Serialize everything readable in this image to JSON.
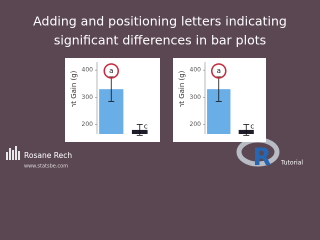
{
  "header": {
    "title_lines": [
      "Adding and positioning letters indicating",
      "significant differences in bar plots"
    ]
  },
  "chart_data": [
    {
      "type": "bar",
      "ylabel": "Weight Gain (g)",
      "categories": [
        null,
        null
      ],
      "values": [
        330,
        180
      ],
      "errors": [
        45,
        20
      ],
      "letters": [
        "a",
        "c"
      ],
      "colors": [
        "#6aaee8",
        "#1c1c2a"
      ],
      "ylim": [
        165,
        430
      ],
      "yticks": [
        200,
        300,
        400
      ]
    },
    {
      "type": "bar",
      "ylabel": "Weight Gain (g)",
      "categories": [
        null,
        null
      ],
      "values": [
        330,
        180
      ],
      "errors": [
        45,
        20
      ],
      "letters": [
        "a",
        "c"
      ],
      "colors": [
        "#6aaee8",
        "#1c1c2a"
      ],
      "ylim": [
        165,
        430
      ],
      "yticks": [
        200,
        300,
        400
      ]
    }
  ],
  "footer": {
    "author": "Rosane Rech",
    "website": "www.statsbe.com",
    "badge": "R",
    "tag": "Tutorial"
  }
}
